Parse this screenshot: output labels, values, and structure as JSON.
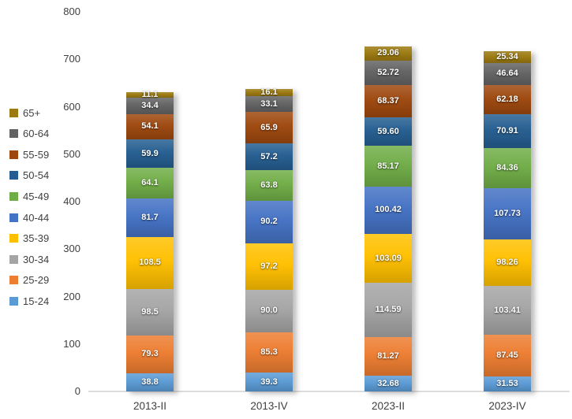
{
  "chart_data": {
    "type": "bar",
    "stacked": true,
    "title": "",
    "xlabel": "",
    "ylabel": "",
    "ylim": [
      0,
      800
    ],
    "y_ticks": [
      "0",
      "100",
      "200",
      "300",
      "400",
      "500",
      "600",
      "700",
      "800"
    ],
    "grid": false,
    "legend_position": "left",
    "legend_order_top_to_bottom": [
      "65+",
      "60-64",
      "55-59",
      "50-54",
      "45-49",
      "40-44",
      "35-39",
      "30-34",
      "25-29",
      "15-24"
    ],
    "categories": [
      "2013-II",
      "2013-IV",
      "2023-II",
      "2023-IV"
    ],
    "series": [
      {
        "name": "15-24",
        "color": "#5B9BD5",
        "values": [
          38.8,
          39.3,
          32.68,
          31.53
        ],
        "labels": [
          "38.8",
          "39.3",
          "32.68",
          "31.53"
        ]
      },
      {
        "name": "25-29",
        "color": "#ED7D31",
        "values": [
          79.3,
          85.3,
          81.27,
          87.45
        ],
        "labels": [
          "79.3",
          "85.3",
          "81.27",
          "87.45"
        ]
      },
      {
        "name": "30-34",
        "color": "#A5A5A5",
        "values": [
          98.5,
          90.0,
          114.59,
          103.41
        ],
        "labels": [
          "98.5",
          "90.0",
          "114.59",
          "103.41"
        ]
      },
      {
        "name": "35-39",
        "color": "#FFC000",
        "values": [
          108.5,
          97.2,
          103.09,
          98.26
        ],
        "labels": [
          "108.5",
          "97.2",
          "103.09",
          "98.26"
        ]
      },
      {
        "name": "40-44",
        "color": "#4472C4",
        "values": [
          81.7,
          90.2,
          100.42,
          107.73
        ],
        "labels": [
          "81.7",
          "90.2",
          "100.42",
          "107.73"
        ]
      },
      {
        "name": "45-49",
        "color": "#70AD47",
        "values": [
          64.1,
          63.8,
          85.17,
          84.36
        ],
        "labels": [
          "64.1",
          "63.8",
          "85.17",
          "84.36"
        ]
      },
      {
        "name": "50-54",
        "color": "#255E91",
        "values": [
          59.9,
          57.2,
          59.6,
          70.91
        ],
        "labels": [
          "59.9",
          "57.2",
          "59.60",
          "70.91"
        ]
      },
      {
        "name": "55-59",
        "color": "#9E480E",
        "values": [
          54.1,
          65.9,
          68.37,
          62.18
        ],
        "labels": [
          "54.1",
          "65.9",
          "68.37",
          "62.18"
        ]
      },
      {
        "name": "60-64",
        "color": "#636363",
        "values": [
          34.4,
          33.1,
          52.72,
          46.64
        ],
        "labels": [
          "34.4",
          "33.1",
          "52.72",
          "46.64"
        ]
      },
      {
        "name": "65+",
        "color": "#9C7A10",
        "values": [
          11.1,
          16.1,
          29.06,
          25.34
        ],
        "labels": [
          "11.1",
          "16.1",
          "29.06",
          "25.34"
        ]
      }
    ],
    "colors": {
      "background": "#FFFFFF",
      "axis_line": "#DCDCDC",
      "tick_text": "#3F3F3F",
      "data_label_text": "#FFFFFF"
    }
  }
}
